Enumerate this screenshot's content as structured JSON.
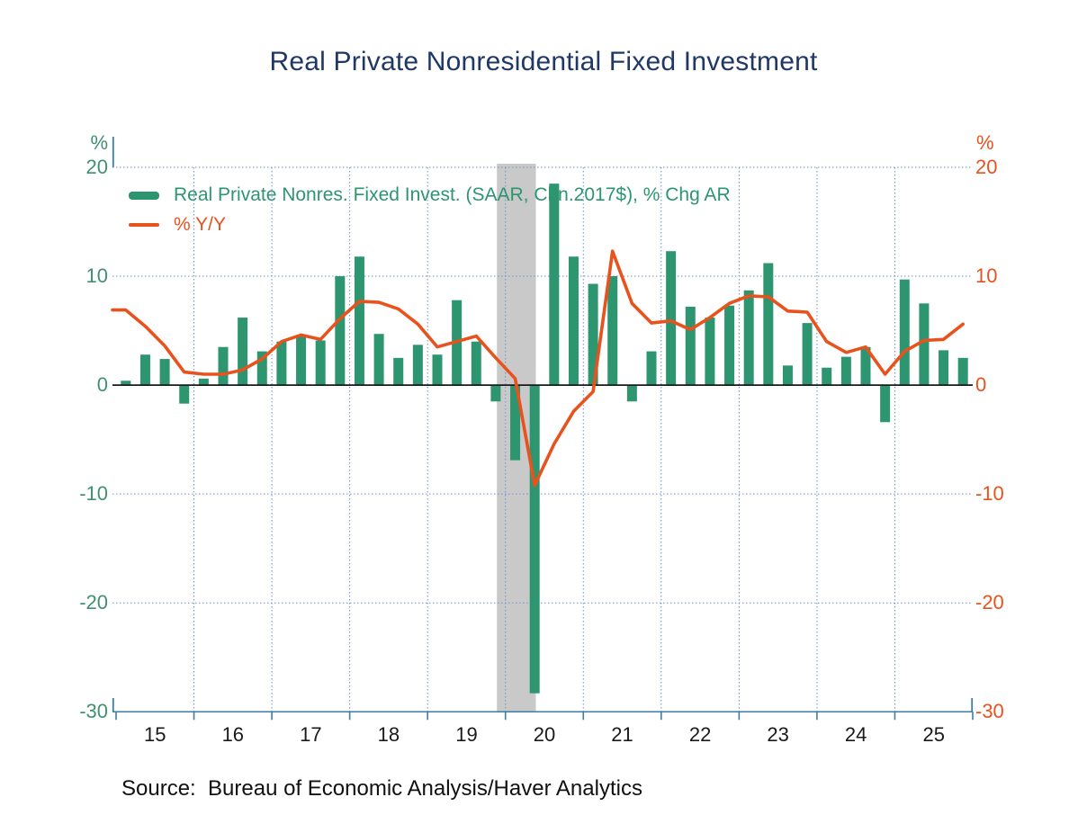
{
  "title": "Real Private Nonresidential Fixed Investment",
  "source_label": "Source:  Bureau of Economic Analysis/Haver Analytics",
  "title_color": "#1f3864",
  "legend": [
    {
      "label": "Real Private Nonres. Fixed Invest. (SAAR, Chn.2017$), % Chg AR",
      "color": "#2d9570",
      "type": "bar"
    },
    {
      "label": "% Y/Y",
      "color": "#e8521d",
      "type": "line"
    }
  ],
  "axes": {
    "left": {
      "unit": "%",
      "ticks": [
        20,
        10,
        0,
        -10,
        -20,
        -30
      ],
      "color": "#3f9170"
    },
    "right": {
      "unit": "%",
      "ticks": [
        20,
        10,
        0,
        -10,
        -20,
        -30
      ],
      "color": "#e8521d"
    },
    "x": {
      "ticks": [
        "15",
        "16",
        "17",
        "18",
        "19",
        "20",
        "21",
        "22",
        "23",
        "24",
        "25"
      ],
      "color": "#1a1a1a"
    }
  },
  "chart_data": {
    "type": "bar+line",
    "title": "Real Private Nonresidential Fixed Investment",
    "ylim": [
      -30,
      20
    ],
    "grid_values": [
      20,
      10,
      -10,
      -20
    ],
    "legend_position": "top-left-inside",
    "grid": "dotted",
    "categories": [
      "2015Q1",
      "2015Q2",
      "2015Q3",
      "2015Q4",
      "2016Q1",
      "2016Q2",
      "2016Q3",
      "2016Q4",
      "2017Q1",
      "2017Q2",
      "2017Q3",
      "2017Q4",
      "2018Q1",
      "2018Q2",
      "2018Q3",
      "2018Q4",
      "2019Q1",
      "2019Q2",
      "2019Q3",
      "2019Q4",
      "2020Q1",
      "2020Q2",
      "2020Q3",
      "2020Q4",
      "2021Q1",
      "2021Q2",
      "2021Q3",
      "2021Q4",
      "2022Q1",
      "2022Q2",
      "2022Q3",
      "2022Q4",
      "2023Q1",
      "2023Q2",
      "2023Q3",
      "2023Q4",
      "2024Q1",
      "2024Q2",
      "2024Q3",
      "2024Q4",
      "2025Q1",
      "2025Q2",
      "2025Q3",
      "2025Q4"
    ],
    "series": [
      {
        "name": "Real Private Nonres. Fixed Invest. (SAAR, Chn.2017$), % Chg AR",
        "type": "bar",
        "values": [
          0.4,
          2.8,
          2.4,
          -1.7,
          0.6,
          3.5,
          6.2,
          3.1,
          4.0,
          4.6,
          4.1,
          10.0,
          11.8,
          4.7,
          2.5,
          3.7,
          2.8,
          7.8,
          4.0,
          -1.5,
          -6.9,
          -28.3,
          18.5,
          11.8,
          9.3,
          10.0,
          -1.5,
          3.1,
          12.3,
          7.2,
          6.2,
          7.3,
          8.7,
          11.2,
          1.8,
          5.7,
          1.6,
          2.6,
          3.5,
          -3.4,
          9.7,
          7.5,
          3.2,
          2.5
        ]
      },
      {
        "name": "% Y/Y",
        "type": "line",
        "values": [
          6.9,
          5.4,
          3.6,
          1.2,
          1.0,
          1.0,
          1.4,
          2.4,
          4.0,
          4.6,
          4.2,
          6.1,
          7.7,
          7.6,
          7.0,
          5.6,
          3.5,
          4.0,
          4.5,
          2.5,
          0.6,
          -9.2,
          -5.4,
          -2.4,
          -0.6,
          12.3,
          7.5,
          5.7,
          5.9,
          5.1,
          6.2,
          7.5,
          8.2,
          8.1,
          6.8,
          6.7,
          4.0,
          3.0,
          3.5,
          1.0,
          3.1,
          4.1,
          4.2,
          5.6
        ]
      }
    ],
    "recession_band": {
      "start": 2019.89,
      "end": 2020.39
    },
    "colors": {
      "bar": "#2d9570",
      "line": "#e8521d",
      "band": "#c9c9c9",
      "grid": "#6b8fcb",
      "axis": "#3a7fa8",
      "zero_line": "#1a1a1a"
    }
  }
}
